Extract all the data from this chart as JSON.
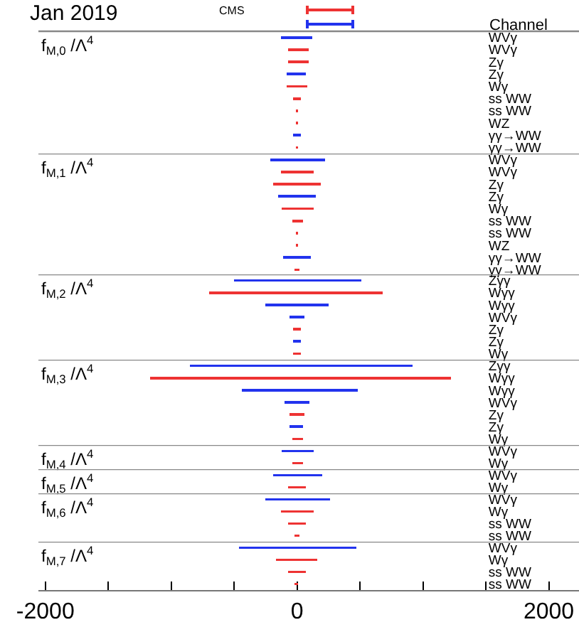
{
  "chart_data": [
    {
      "type": "bar",
      "orientation": "horizontal",
      "title": "f$_{M,0}$ /Λ$^{4}$",
      "ylabel": "Channel",
      "annotations": [
        "Jan 2019",
        "CMS"
      ],
      "categories": [
        "WVγ",
        "WVγ",
        "Zγ",
        "Zγ",
        "Wγ",
        "ss WW",
        "ss WW",
        "WZ",
        "γγ→WW",
        "γγ→WW"
      ],
      "base": [
        -130,
        -70,
        -70,
        -80,
        -80,
        -30,
        -10,
        -10,
        -30,
        -10
      ],
      "values": [
        250,
        160,
        160,
        150,
        160,
        60,
        20,
        20,
        60,
        20
      ],
      "colors": [
        "#2233ee",
        "#ee3333",
        "#ee3333",
        "#2233ee",
        "#ee3333",
        "#ee3333",
        "#ee3333",
        "#ee3333",
        "#2233ee",
        "#ee3333"
      ],
      "xlim": [
        -2055,
        2240
      ],
      "tick_labels": "y"
    },
    {
      "type": "bar",
      "orientation": "horizontal",
      "title": "f$_{M,1}$ /Λ$^{4}$",
      "categories": [
        "WVγ",
        "WVγ",
        "Zγ",
        "Zγ",
        "Wγ",
        "ss WW",
        "ss WW",
        "WZ",
        "γγ→WW",
        "γγ→WW"
      ],
      "base": [
        -210,
        -130,
        -190,
        -150,
        -120,
        -40,
        -10,
        -10,
        -110,
        -20
      ],
      "values": [
        430,
        260,
        380,
        300,
        250,
        90,
        20,
        20,
        220,
        40
      ],
      "colors": [
        "#2233ee",
        "#ee3333",
        "#ee3333",
        "#2233ee",
        "#ee3333",
        "#ee3333",
        "#ee3333",
        "#ee3333",
        "#2233ee",
        "#ee3333"
      ],
      "xlim": [
        -2055,
        2240
      ],
      "tick_labels": "y"
    },
    {
      "type": "bar",
      "orientation": "horizontal",
      "title": "f$_{M,2}$ /Λ$^{4}$",
      "categories": [
        "Zγγ",
        "Wγγ",
        "Wγγ",
        "WVγ",
        "Zγ",
        "Zγ",
        "Wγ"
      ],
      "base": [
        -500,
        -700,
        -250,
        -60,
        -30,
        -30,
        -30
      ],
      "values": [
        1010,
        1380,
        500,
        120,
        60,
        60,
        60
      ],
      "colors": [
        "#2233ee",
        "#ee3333",
        "#2233ee",
        "#2233ee",
        "#ee3333",
        "#2233ee",
        "#ee3333"
      ],
      "xlim": [
        -2055,
        2240
      ],
      "tick_labels": "y"
    },
    {
      "type": "bar",
      "orientation": "horizontal",
      "title": "f$_{M,3}$ /Λ$^{4}$",
      "categories": [
        "Zγγ",
        "Wγγ",
        "Wγγ",
        "WVγ",
        "Zγ",
        "Zγ",
        "Wγ"
      ],
      "base": [
        -850,
        -1170,
        -440,
        -100,
        -60,
        -60,
        -40
      ],
      "values": [
        1770,
        2390,
        920,
        200,
        120,
        110,
        90
      ],
      "colors": [
        "#2233ee",
        "#ee3333",
        "#2233ee",
        "#2233ee",
        "#ee3333",
        "#2233ee",
        "#ee3333"
      ],
      "xlim": [
        -2055,
        2240
      ],
      "tick_labels": "y"
    },
    {
      "type": "bar",
      "orientation": "horizontal",
      "title": "f$_{M,4}$ /Λ$^{4}$",
      "categories": [
        "WVγ",
        "Wγ"
      ],
      "base": [
        -120,
        -40
      ],
      "values": [
        250,
        90
      ],
      "colors": [
        "#2233ee",
        "#ee3333"
      ],
      "xlim": [
        -2055,
        2240
      ],
      "tick_labels": "y"
    },
    {
      "type": "bar",
      "orientation": "horizontal",
      "title": "f$_{M,5}$ /Λ$^{4}$",
      "categories": [
        "WVγ",
        "Wγ"
      ],
      "base": [
        -190,
        -70
      ],
      "values": [
        390,
        140
      ],
      "colors": [
        "#2233ee",
        "#ee3333"
      ],
      "xlim": [
        -2055,
        2240
      ],
      "tick_labels": "y"
    },
    {
      "type": "bar",
      "orientation": "horizontal",
      "title": "f$_{M,6}$ /Λ$^{4}$",
      "categories": [
        "WVγ",
        "Wγ",
        "ss WW",
        "ss WW"
      ],
      "base": [
        -250,
        -130,
        -70,
        -20
      ],
      "values": [
        510,
        260,
        140,
        40
      ],
      "colors": [
        "#2233ee",
        "#ee3333",
        "#ee3333",
        "#ee3333"
      ],
      "xlim": [
        -2055,
        2240
      ],
      "tick_labels": "y"
    },
    {
      "type": "bar",
      "orientation": "horizontal",
      "title": "f$_{M,7}$ /Λ$^{4}$",
      "categories": [
        "WVγ",
        "Wγ",
        "ss WW",
        "ss WW"
      ],
      "base": [
        -460,
        -170,
        -70,
        -20
      ],
      "values": [
        930,
        330,
        140,
        30
      ],
      "colors": [
        "#2233ee",
        "#ee3333",
        "#ee3333",
        "#ee3333"
      ],
      "xlim": [
        -2055,
        2240
      ],
      "xticks": [
        -2000,
        {
          "value": -1500,
          "label": null
        },
        {
          "value": -1000,
          "label": null
        },
        {
          "value": -500,
          "label": null
        },
        0,
        {
          "value": 500,
          "label": null
        },
        {
          "value": 1000,
          "label": null
        },
        {
          "value": 1500,
          "label": null
        },
        2000
      ]
    }
  ]
}
